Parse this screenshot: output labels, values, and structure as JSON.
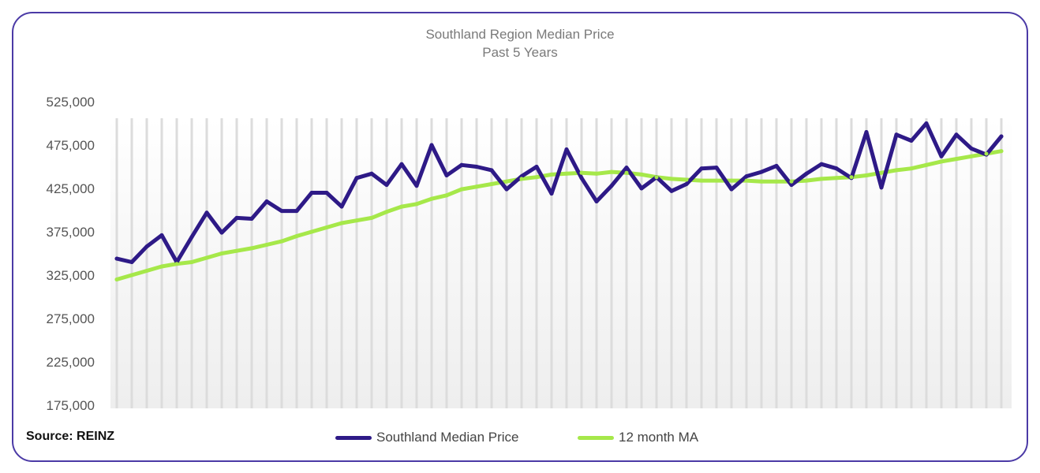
{
  "chart_data": {
    "type": "line",
    "title": "Southland Region Median Price",
    "subtitle": "Past 5 Years",
    "xlabel": "",
    "ylabel": "",
    "ylim": [
      175000,
      525000
    ],
    "yticks": [
      "525,000",
      "475,000",
      "425,000",
      "375,000",
      "325,000",
      "275,000",
      "225,000",
      "175,000"
    ],
    "ytick_values": [
      525000,
      475000,
      425000,
      375000,
      325000,
      275000,
      225000,
      175000
    ],
    "legend_position": "bottom",
    "grid": false,
    "series": [
      {
        "name": "Southland Median Price",
        "color": "#2e1a87",
        "values": [
          344000,
          340000,
          358000,
          371000,
          340000,
          369000,
          397000,
          374000,
          391000,
          390000,
          410000,
          399000,
          399000,
          420000,
          420000,
          404000,
          437000,
          442000,
          429000,
          453000,
          428000,
          475000,
          440000,
          452000,
          450000,
          446000,
          424000,
          439000,
          450000,
          419000,
          470000,
          437000,
          410000,
          428000,
          449000,
          425000,
          438000,
          422000,
          430000,
          448000,
          449000,
          424000,
          439000,
          444000,
          451000,
          429000,
          442000,
          453000,
          448000,
          437000,
          490000,
          426000,
          487000,
          480000,
          500000,
          462000,
          487000,
          471000,
          464000,
          485000
        ]
      },
      {
        "name": "12 month MA",
        "color": "#a6e84a",
        "values": [
          320000,
          325000,
          330000,
          335000,
          338000,
          340000,
          345000,
          350000,
          353000,
          356000,
          360000,
          364000,
          370000,
          375000,
          380000,
          385000,
          388000,
          391000,
          398000,
          404000,
          407000,
          413000,
          417000,
          424000,
          427000,
          430000,
          433000,
          436000,
          438000,
          441000,
          442000,
          443000,
          442000,
          444000,
          443000,
          441000,
          438000,
          436000,
          435000,
          434000,
          434000,
          434000,
          434000,
          433000,
          433000,
          433000,
          434000,
          436000,
          437000,
          438000,
          440000,
          443000,
          446000,
          448000,
          452000,
          456000,
          459000,
          462000,
          465000,
          468000
        ]
      }
    ]
  },
  "source": "Source: REINZ"
}
